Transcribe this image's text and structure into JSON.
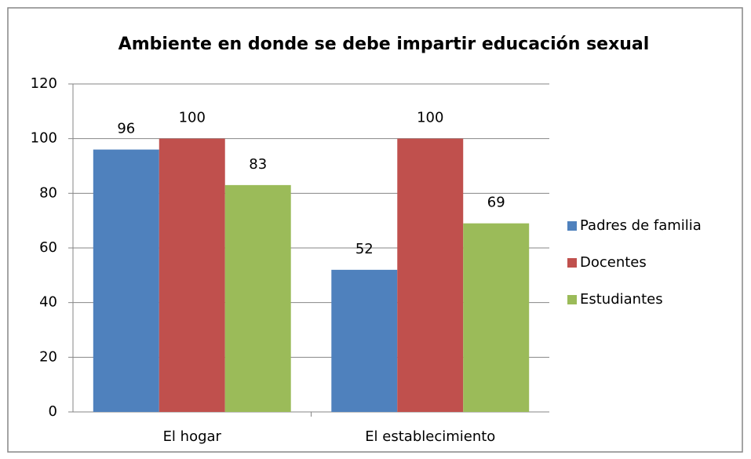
{
  "chart_data": {
    "type": "bar",
    "title": "Ambiente en donde se debe impartir educación sexual",
    "categories": [
      "El hogar",
      "El establecimiento"
    ],
    "series": [
      {
        "name": "Padres de familia",
        "color": "#4f81bd",
        "values": [
          96,
          52
        ]
      },
      {
        "name": "Docentes",
        "color": "#c0504d",
        "values": [
          100,
          100
        ]
      },
      {
        "name": "Estudiantes",
        "color": "#9bbb59",
        "values": [
          83,
          69
        ]
      }
    ],
    "ylim": [
      0,
      120
    ],
    "yticks": [
      0,
      20,
      40,
      60,
      80,
      100,
      120
    ],
    "grid": true,
    "legend": "right"
  }
}
